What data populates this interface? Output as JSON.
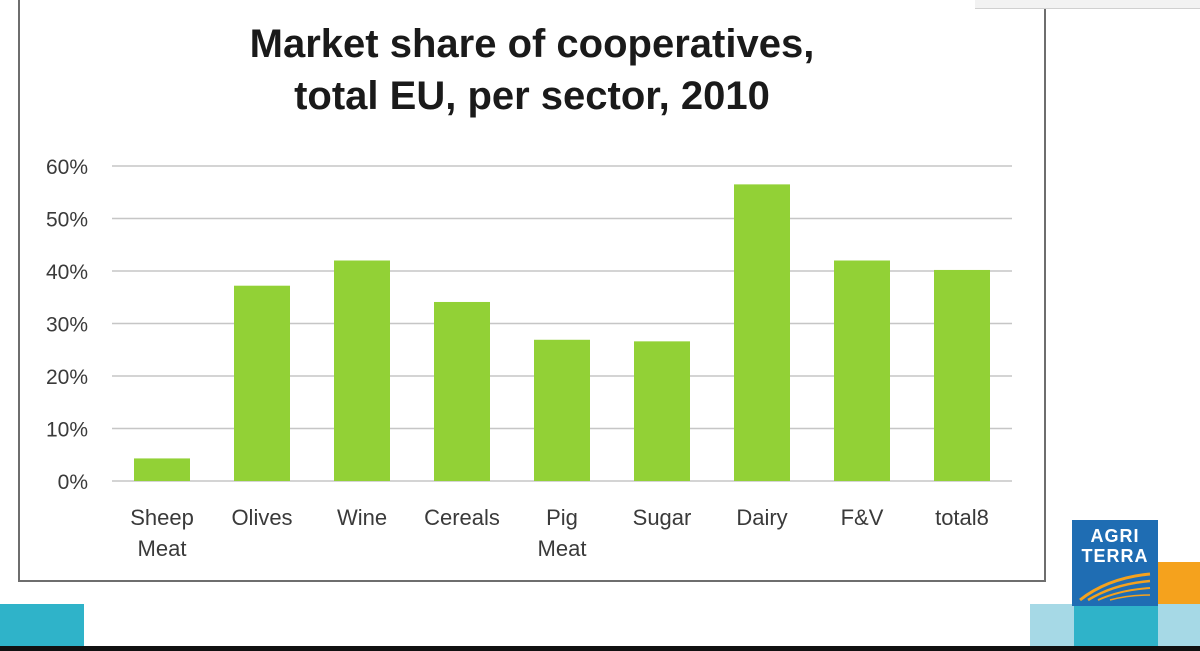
{
  "title": "Market share of cooperatives,\ntotal EU, per sector, 2010",
  "logo": {
    "line1": "AGRI",
    "line2": "TERRA"
  },
  "colors": {
    "bar": "#92d136",
    "grid": "#c6c6c6",
    "accent_teal": "#2fb3c9",
    "accent_light": "#a6d9e6",
    "accent_orange": "#f5a21d",
    "logo_blue": "#1f6db3"
  },
  "chart_data": {
    "type": "bar",
    "title": "Market share of cooperatives, total EU, per sector, 2010",
    "categories": [
      "Sheep Meat",
      "Olives",
      "Wine",
      "Cereals",
      "Pig Meat",
      "Sugar",
      "Dairy",
      "F&V",
      "total8"
    ],
    "category_lines": [
      [
        "Sheep",
        "Meat"
      ],
      [
        "Olives"
      ],
      [
        "Wine"
      ],
      [
        "Cereals"
      ],
      [
        "Pig",
        "Meat"
      ],
      [
        "Sugar"
      ],
      [
        "Dairy"
      ],
      [
        "F&V"
      ],
      [
        "total8"
      ]
    ],
    "values": [
      4.3,
      37.2,
      42.0,
      34.1,
      26.9,
      26.6,
      56.5,
      42.0,
      40.2
    ],
    "yticks": [
      "0%",
      "10%",
      "20%",
      "30%",
      "40%",
      "50%",
      "60%"
    ],
    "ylim": [
      0,
      60
    ],
    "grid": true,
    "legend": "none"
  }
}
